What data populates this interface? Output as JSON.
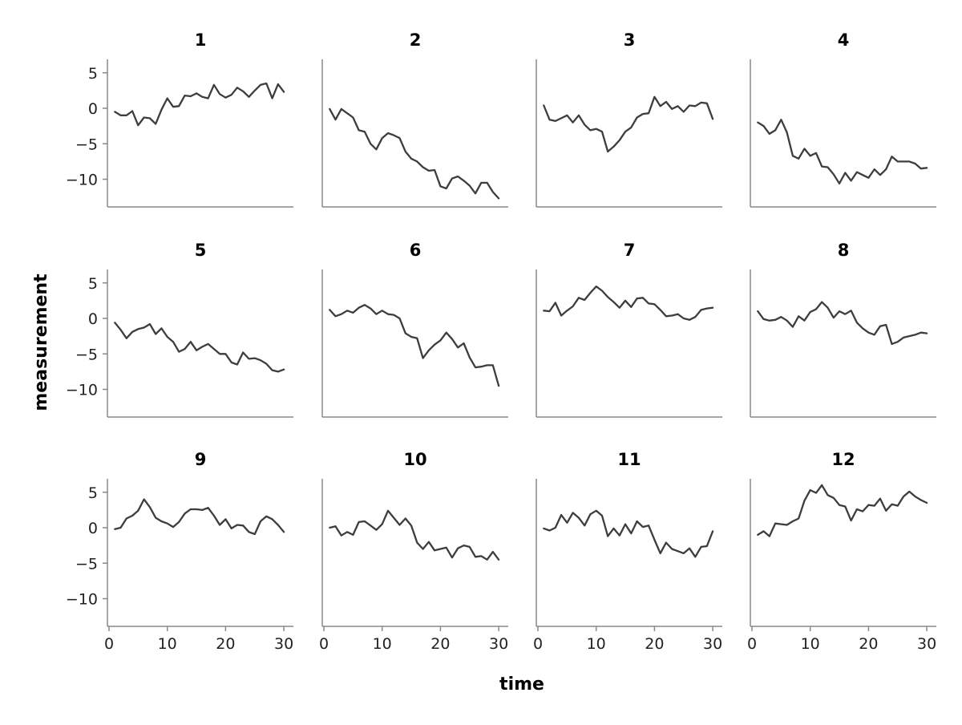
{
  "chart_data": {
    "type": "line",
    "layout": "small-multiples 3 rows x 4 columns, shared axes",
    "xlabel": "time",
    "ylabel": "measurement",
    "xlim": [
      0,
      31
    ],
    "ylim": [
      -14,
      7
    ],
    "xticks": [
      0,
      10,
      20,
      30
    ],
    "yticks": [
      5,
      0,
      -5,
      -10
    ],
    "x": [
      1,
      2,
      3,
      4,
      5,
      6,
      7,
      8,
      9,
      10,
      11,
      12,
      13,
      14,
      15,
      16,
      17,
      18,
      19,
      20,
      21,
      22,
      23,
      24,
      25,
      26,
      27,
      28,
      29,
      30
    ],
    "grid": false,
    "line_color": "#3d3d3d",
    "panels": [
      {
        "title": "1",
        "values": [
          -0.5,
          -1.0,
          -1.0,
          -0.4,
          -2.4,
          -1.3,
          -1.4,
          -2.2,
          -0.2,
          1.4,
          0.2,
          0.3,
          1.8,
          1.7,
          2.1,
          1.6,
          1.4,
          3.3,
          2.0,
          1.5,
          1.9,
          2.9,
          2.4,
          1.6,
          2.5,
          3.3,
          3.5,
          1.4,
          3.4,
          2.3
        ]
      },
      {
        "title": "2",
        "values": [
          -0.1,
          -1.6,
          -0.1,
          -0.7,
          -1.3,
          -3.1,
          -3.3,
          -5.0,
          -5.8,
          -4.2,
          -3.5,
          -3.8,
          -4.2,
          -6.1,
          -7.1,
          -7.5,
          -8.3,
          -8.8,
          -8.7,
          -11.0,
          -11.3,
          -9.9,
          -9.6,
          -10.2,
          -10.9,
          -12.0,
          -10.5,
          -10.5,
          -11.8,
          -12.7
        ]
      },
      {
        "title": "3",
        "values": [
          0.4,
          -1.6,
          -1.8,
          -1.4,
          -1.0,
          -2.0,
          -1.0,
          -2.3,
          -3.1,
          -2.9,
          -3.3,
          -6.1,
          -5.4,
          -4.5,
          -3.3,
          -2.7,
          -1.3,
          -0.8,
          -0.7,
          1.6,
          0.3,
          0.9,
          -0.1,
          0.3,
          -0.5,
          0.4,
          0.3,
          0.8,
          0.7,
          -1.5
        ]
      },
      {
        "title": "4",
        "values": [
          -2.0,
          -2.5,
          -3.6,
          -3.1,
          -1.6,
          -3.4,
          -6.7,
          -7.1,
          -5.7,
          -6.7,
          -6.3,
          -8.2,
          -8.3,
          -9.3,
          -10.6,
          -9.1,
          -10.2,
          -9.0,
          -9.4,
          -9.8,
          -8.6,
          -9.4,
          -8.6,
          -6.8,
          -7.5,
          -7.5,
          -7.5,
          -7.8,
          -8.5,
          -8.4
        ]
      },
      {
        "title": "5",
        "values": [
          -0.6,
          -1.6,
          -2.8,
          -1.9,
          -1.5,
          -1.3,
          -0.8,
          -2.2,
          -1.4,
          -2.6,
          -3.3,
          -4.7,
          -4.3,
          -3.3,
          -4.5,
          -4.0,
          -3.6,
          -4.3,
          -5.0,
          -5.0,
          -6.2,
          -6.5,
          -4.8,
          -5.7,
          -5.6,
          -5.9,
          -6.4,
          -7.3,
          -7.5,
          -7.2
        ]
      },
      {
        "title": "6",
        "values": [
          1.2,
          0.3,
          0.6,
          1.1,
          0.8,
          1.5,
          1.9,
          1.4,
          0.6,
          1.1,
          0.6,
          0.5,
          0.0,
          -2.1,
          -2.6,
          -2.8,
          -5.6,
          -4.5,
          -3.7,
          -3.1,
          -2.0,
          -2.9,
          -4.1,
          -3.5,
          -5.5,
          -6.9,
          -6.8,
          -6.6,
          -6.6,
          -9.5
        ]
      },
      {
        "title": "7",
        "values": [
          1.1,
          1.0,
          2.2,
          0.4,
          1.1,
          1.7,
          2.9,
          2.6,
          3.6,
          4.5,
          3.9,
          3.0,
          2.3,
          1.5,
          2.5,
          1.6,
          2.8,
          2.9,
          2.1,
          2.0,
          1.2,
          0.3,
          0.4,
          0.6,
          0.0,
          -0.2,
          0.2,
          1.2,
          1.4,
          1.5
        ]
      },
      {
        "title": "8",
        "values": [
          1.0,
          -0.1,
          -0.3,
          -0.2,
          0.2,
          -0.3,
          -1.2,
          0.3,
          -0.3,
          0.9,
          1.3,
          2.3,
          1.5,
          0.1,
          1.0,
          0.6,
          1.1,
          -0.6,
          -1.4,
          -2.0,
          -2.3,
          -1.1,
          -0.9,
          -3.6,
          -3.3,
          -2.7,
          -2.5,
          -2.3,
          -2.0,
          -2.1
        ]
      },
      {
        "title": "9",
        "values": [
          -0.2,
          0.0,
          1.3,
          1.7,
          2.4,
          4.0,
          2.9,
          1.4,
          0.9,
          0.6,
          0.1,
          0.8,
          2.0,
          2.6,
          2.6,
          2.5,
          2.8,
          1.7,
          0.4,
          1.2,
          -0.1,
          0.4,
          0.3,
          -0.6,
          -0.9,
          0.9,
          1.6,
          1.2,
          0.4,
          -0.6
        ]
      },
      {
        "title": "10",
        "values": [
          0.0,
          0.2,
          -1.1,
          -0.6,
          -1.0,
          0.8,
          0.9,
          0.3,
          -0.3,
          0.5,
          2.4,
          1.4,
          0.4,
          1.3,
          0.3,
          -2.1,
          -3.0,
          -2.0,
          -3.2,
          -3.0,
          -2.8,
          -4.2,
          -2.9,
          -2.5,
          -2.7,
          -4.1,
          -4.0,
          -4.5,
          -3.4,
          -4.5
        ]
      },
      {
        "title": "11",
        "values": [
          -0.1,
          -0.4,
          0.0,
          1.8,
          0.7,
          2.1,
          1.4,
          0.3,
          1.9,
          2.4,
          1.7,
          -1.2,
          -0.1,
          -1.1,
          0.5,
          -0.8,
          0.9,
          0.1,
          0.3,
          -1.7,
          -3.6,
          -2.1,
          -3.0,
          -3.3,
          -3.6,
          -2.9,
          -4.1,
          -2.7,
          -2.6,
          -0.5
        ]
      },
      {
        "title": "12",
        "values": [
          -1.0,
          -0.5,
          -1.2,
          0.6,
          0.5,
          0.4,
          0.9,
          1.3,
          3.8,
          5.3,
          4.9,
          6.0,
          4.6,
          4.2,
          3.2,
          3.0,
          1.0,
          2.6,
          2.3,
          3.2,
          3.1,
          4.1,
          2.4,
          3.3,
          3.1,
          4.4,
          5.1,
          4.4,
          3.9,
          3.5
        ]
      }
    ]
  }
}
